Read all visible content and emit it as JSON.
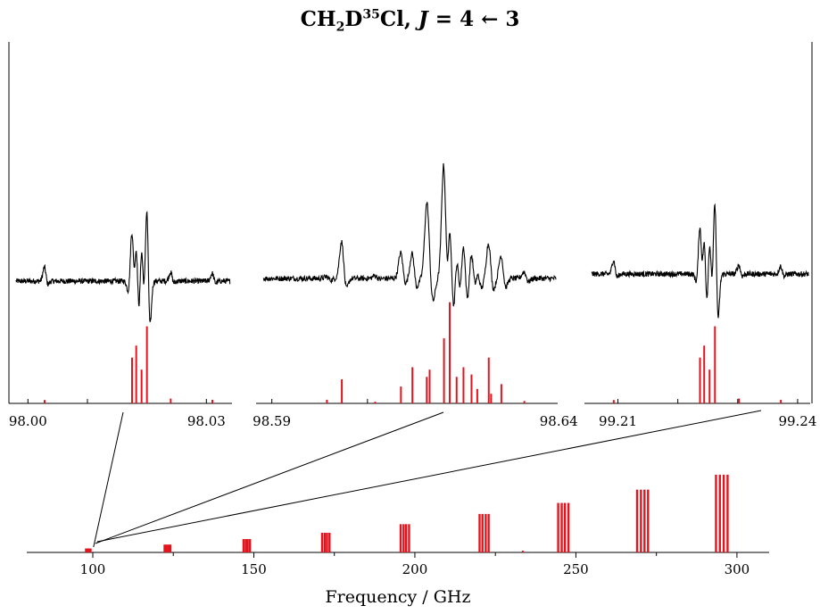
{
  "title": {
    "species_prefix": "CH",
    "sub_h": "2",
    "d": "D",
    "isotope_sup": "35",
    "cl": "Cl, ",
    "j_var": "J",
    "transition": " = 4 ← 3"
  },
  "colors": {
    "observed": "#000000",
    "predicted": "#e3141d",
    "axis": "#000000"
  },
  "chart_data": [
    {
      "type": "line",
      "panel": "zoom-1",
      "xlim": [
        97.998,
        98.034
      ],
      "x_tick_labels": [
        "98.00",
        "98.03"
      ],
      "x_ticks": [
        98.0,
        98.03
      ],
      "observed_peaks": [
        {
          "x": 98.0028,
          "up": 0.14,
          "down": 0.05
        },
        {
          "x": 98.0165,
          "up": 0.0,
          "down": 0.12
        },
        {
          "x": 98.0175,
          "up": 0.54,
          "down": 0.37
        },
        {
          "x": 98.0182,
          "up": 0.62,
          "down": 0.47
        },
        {
          "x": 98.0191,
          "up": 0.45,
          "down": 0.32
        },
        {
          "x": 98.02,
          "up": 0.86,
          "down": 0.56
        },
        {
          "x": 98.024,
          "up": 0.09,
          "down": 0.03
        },
        {
          "x": 98.031,
          "up": 0.08,
          "down": 0.03
        }
      ],
      "predicted_sticks": [
        {
          "x": 98.0028,
          "v": 0.014
        },
        {
          "x": 98.0175,
          "v": 0.19
        },
        {
          "x": 98.0182,
          "v": 0.24
        },
        {
          "x": 98.0191,
          "v": 0.14
        },
        {
          "x": 98.02,
          "v": 0.32
        },
        {
          "x": 98.024,
          "v": 0.02
        },
        {
          "x": 98.031,
          "v": 0.015
        }
      ]
    },
    {
      "type": "line",
      "panel": "zoom-2",
      "xlim": [
        98.5885,
        98.6395
      ],
      "x_tick_labels": [
        "98.59",
        "98.64"
      ],
      "x_ticks": [
        98.59,
        98.64
      ],
      "observed_peaks": [
        {
          "x": 98.5996,
          "up": 0.02,
          "down": 0.02
        },
        {
          "x": 98.6022,
          "up": 0.38,
          "down": 0.15
        },
        {
          "x": 98.608,
          "up": 0.03,
          "down": 0.01
        },
        {
          "x": 98.6125,
          "up": 0.26,
          "down": 0.08
        },
        {
          "x": 98.6145,
          "up": 0.26,
          "down": 0.12
        },
        {
          "x": 98.617,
          "up": 0.66,
          "down": 0.27
        },
        {
          "x": 98.6175,
          "up": 0.29,
          "down": 0.18
        },
        {
          "x": 98.62,
          "up": 1.2,
          "down": 0.7
        },
        {
          "x": 98.621,
          "up": 0.95,
          "down": 0.58
        },
        {
          "x": 98.6222,
          "up": 0.37,
          "down": 0.3
        },
        {
          "x": 98.6234,
          "up": 0.47,
          "down": 0.33
        },
        {
          "x": 98.6248,
          "up": 0.31,
          "down": 0.23
        },
        {
          "x": 98.6258,
          "up": 0.18,
          "down": 0.12
        },
        {
          "x": 98.6278,
          "up": 0.35,
          "down": 0.15
        },
        {
          "x": 98.6282,
          "up": 0.03,
          "down": 0.02
        },
        {
          "x": 98.63,
          "up": 0.24,
          "down": 0.12
        },
        {
          "x": 98.634,
          "up": 0.07,
          "down": 0.04
        }
      ],
      "predicted_sticks": [
        {
          "x": 98.5996,
          "v": 0.015
        },
        {
          "x": 98.6022,
          "v": 0.1
        },
        {
          "x": 98.608,
          "v": 0.007
        },
        {
          "x": 98.6125,
          "v": 0.07
        },
        {
          "x": 98.6145,
          "v": 0.15
        },
        {
          "x": 98.617,
          "v": 0.11
        },
        {
          "x": 98.6175,
          "v": 0.14
        },
        {
          "x": 98.62,
          "v": 0.27
        },
        {
          "x": 98.621,
          "v": 0.42
        },
        {
          "x": 98.6222,
          "v": 0.11
        },
        {
          "x": 98.6234,
          "v": 0.15
        },
        {
          "x": 98.6248,
          "v": 0.12
        },
        {
          "x": 98.6258,
          "v": 0.06
        },
        {
          "x": 98.6278,
          "v": 0.19
        },
        {
          "x": 98.6282,
          "v": 0.04
        },
        {
          "x": 98.63,
          "v": 0.08
        },
        {
          "x": 98.634,
          "v": 0.01
        }
      ]
    },
    {
      "type": "line",
      "panel": "zoom-3",
      "xlim": [
        99.2056,
        99.2418
      ],
      "x_tick_labels": [
        "99.21",
        "99.24"
      ],
      "x_ticks": [
        99.21,
        99.24
      ],
      "observed_peaks": [
        {
          "x": 99.2093,
          "up": 0.14,
          "down": 0.05
        },
        {
          "x": 99.2228,
          "up": 0.0,
          "down": 0.12
        },
        {
          "x": 99.2237,
          "up": 0.54,
          "down": 0.37
        },
        {
          "x": 99.2244,
          "up": 0.62,
          "down": 0.47
        },
        {
          "x": 99.2253,
          "up": 0.45,
          "down": 0.32
        },
        {
          "x": 99.2262,
          "up": 0.86,
          "down": 0.56
        },
        {
          "x": 99.2302,
          "up": 0.09,
          "down": 0.03
        },
        {
          "x": 99.2372,
          "up": 0.08,
          "down": 0.03
        }
      ],
      "predicted_sticks": [
        {
          "x": 99.2093,
          "v": 0.014
        },
        {
          "x": 99.2237,
          "v": 0.19
        },
        {
          "x": 99.2244,
          "v": 0.24
        },
        {
          "x": 99.2253,
          "v": 0.14
        },
        {
          "x": 99.2262,
          "v": 0.32
        },
        {
          "x": 99.2302,
          "v": 0.02
        },
        {
          "x": 99.2372,
          "v": 0.015
        }
      ]
    },
    {
      "type": "bar",
      "panel": "overview",
      "xlabel": "Frequency / GHz",
      "xlim": [
        79.5,
        310
      ],
      "x_tick_labels": [
        "100",
        "150",
        "200",
        "250",
        "300"
      ],
      "x_ticks": [
        100,
        150,
        200,
        250,
        300
      ],
      "x_minor_ticks": [
        125,
        175,
        225,
        275
      ],
      "clusters": [
        {
          "center": 98.6,
          "height": 0.05,
          "lines": [
            97.9,
            98.3,
            98.6,
            99.0,
            99.3
          ]
        },
        {
          "center": 123.2,
          "height": 0.1,
          "lines": [
            122.3,
            122.9,
            123.5,
            124.1
          ]
        },
        {
          "center": 147.8,
          "height": 0.17,
          "lines": [
            146.8,
            147.5,
            148.1,
            148.8
          ]
        },
        {
          "center": 172.3,
          "height": 0.25,
          "lines": [
            171.2,
            172.0,
            172.7,
            173.5
          ]
        },
        {
          "center": 196.9,
          "height": 0.36,
          "lines": [
            195.6,
            196.5,
            197.3,
            198.2
          ]
        },
        {
          "center": 221.5,
          "height": 0.49,
          "lines": [
            220.1,
            221.0,
            222.0,
            222.9
          ]
        },
        {
          "center": 246.1,
          "height": 0.63,
          "lines": [
            244.5,
            245.6,
            246.6,
            247.7
          ]
        },
        {
          "center": 270.7,
          "height": 0.8,
          "lines": [
            269.0,
            270.2,
            271.3,
            272.4
          ]
        },
        {
          "center": 295.3,
          "height": 0.99,
          "lines": [
            293.5,
            294.7,
            295.9,
            297.1
          ]
        }
      ],
      "isolated_lines": [
        {
          "x": 233.5,
          "height": 0.012
        }
      ]
    }
  ]
}
